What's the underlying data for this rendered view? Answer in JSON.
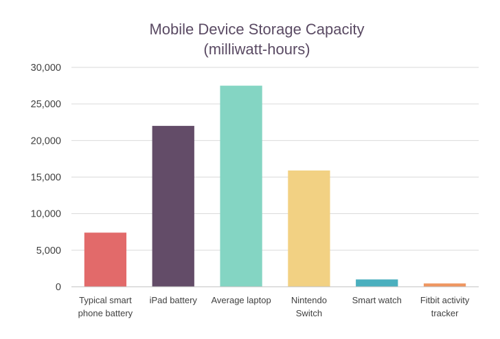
{
  "chart_data": {
    "type": "bar",
    "title": "Mobile Device Storage Capacity",
    "subtitle": "(milliwatt-hours)",
    "xlabel": "",
    "ylabel": "",
    "ylim": [
      0,
      30000
    ],
    "yticks": [
      "0",
      "5,000",
      "10,000",
      "15,000",
      "20,000",
      "25,000",
      "30,000"
    ],
    "grid": true,
    "categories": [
      [
        "Typical smart",
        "phone battery"
      ],
      [
        "iPad battery"
      ],
      [
        "Average laptop"
      ],
      [
        "Nintendo",
        "Switch"
      ],
      [
        "Smart watch"
      ],
      [
        "Fitbit activity",
        "tracker"
      ]
    ],
    "values": [
      7400,
      22000,
      27500,
      15900,
      1000,
      450
    ],
    "colors": [
      "#e26a6a",
      "#634c68",
      "#84d5c3",
      "#f2d183",
      "#4aafbe",
      "#ef9660"
    ]
  }
}
